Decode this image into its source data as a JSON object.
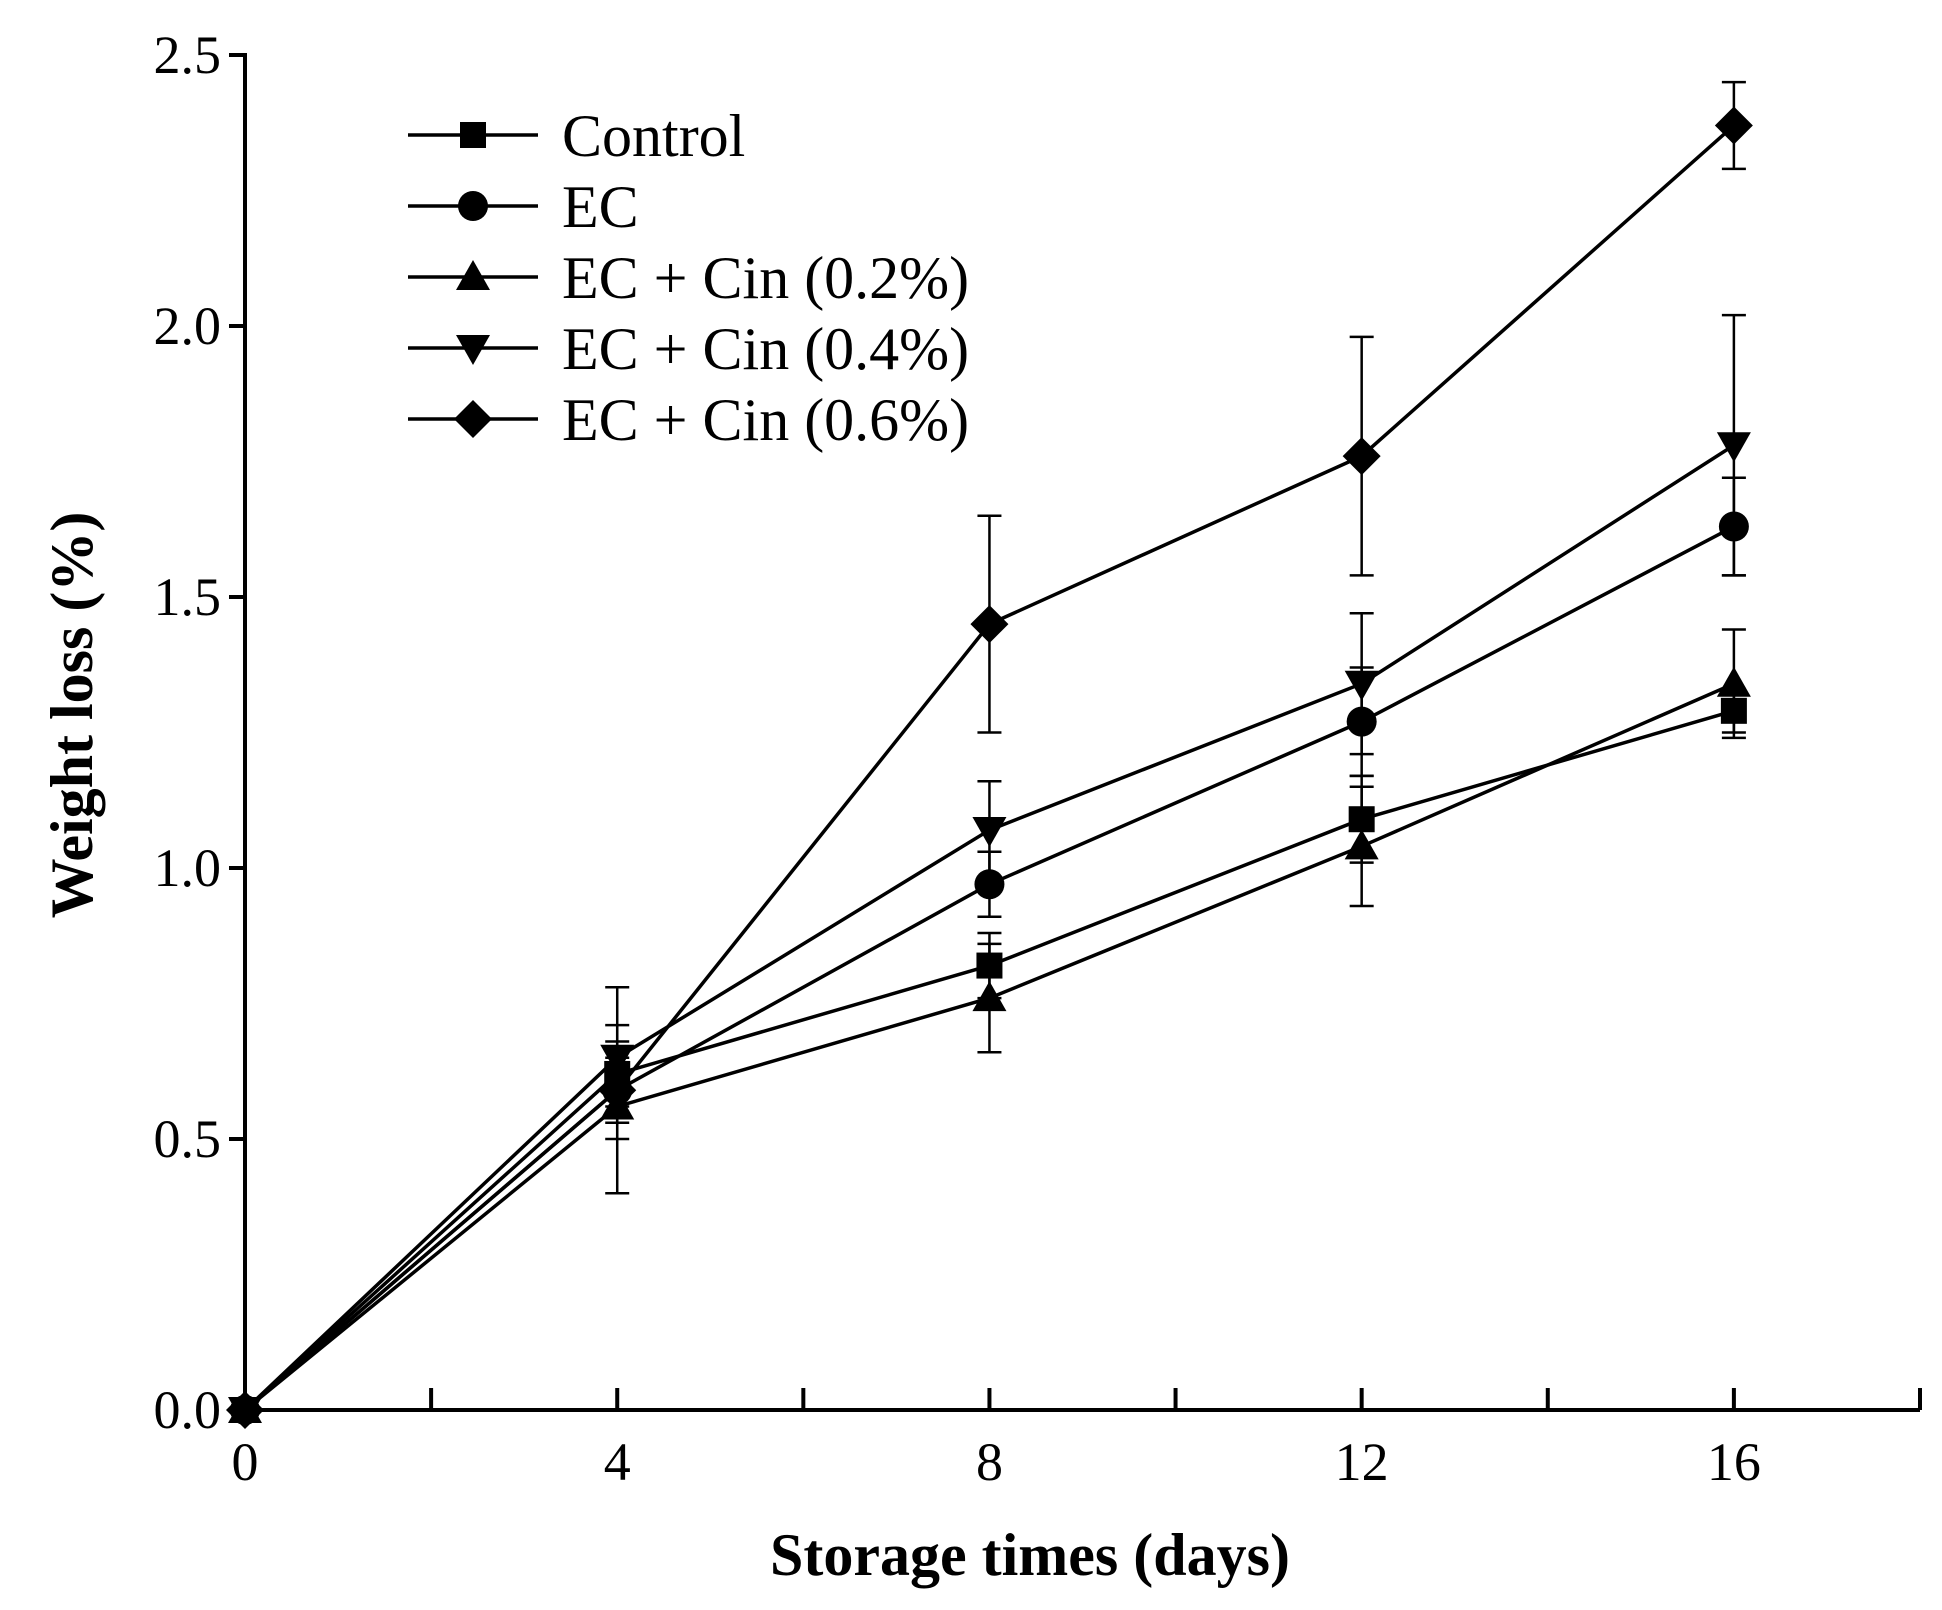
{
  "chart_data": {
    "type": "line",
    "title": "",
    "xlabel": "Storage times (days)",
    "ylabel": "Weight loss (%)",
    "xlim": [
      0,
      18
    ],
    "ylim": [
      0,
      2.5
    ],
    "x_major_ticks": [
      0,
      4,
      8,
      12,
      16
    ],
    "x_minor_ticks": [
      2,
      6,
      10,
      14,
      18
    ],
    "x_tick_labels": [
      "0",
      "4",
      "8",
      "12",
      "16"
    ],
    "y_ticks": [
      0.0,
      0.5,
      1.0,
      1.5,
      2.0,
      2.5
    ],
    "y_tick_labels": [
      "0.0",
      "0.5",
      "1.0",
      "1.5",
      "2.0",
      "2.5"
    ],
    "legend_position": "top-left",
    "grid": false,
    "x": [
      0,
      4,
      8,
      12,
      16
    ],
    "series": [
      {
        "name": "Control",
        "marker": "square",
        "values": [
          0.0,
          0.62,
          0.82,
          1.09,
          1.29
        ],
        "errors": [
          0.0,
          0.06,
          0.06,
          0.08,
          0.04
        ]
      },
      {
        "name": "EC",
        "marker": "circle",
        "values": [
          0.0,
          0.59,
          0.97,
          1.27,
          1.63
        ],
        "errors": [
          0.0,
          0.06,
          0.06,
          0.1,
          0.09
        ]
      },
      {
        "name": "EC + Cin (0.2%)",
        "marker": "triangle-up",
        "values": [
          0.0,
          0.56,
          0.76,
          1.04,
          1.34
        ],
        "errors": [
          0.0,
          0.06,
          0.1,
          0.11,
          0.1
        ]
      },
      {
        "name": "EC + Cin (0.4%)",
        "marker": "triangle-down",
        "values": [
          0.0,
          0.65,
          1.07,
          1.34,
          1.78
        ],
        "errors": [
          0.0,
          0.06,
          0.09,
          0.13,
          0.24
        ]
      },
      {
        "name": "EC + Cin (0.6%)",
        "marker": "diamond",
        "values": [
          0.0,
          0.59,
          1.45,
          1.76,
          2.37
        ],
        "errors": [
          0.0,
          0.19,
          0.2,
          0.22,
          0.08
        ]
      }
    ]
  }
}
